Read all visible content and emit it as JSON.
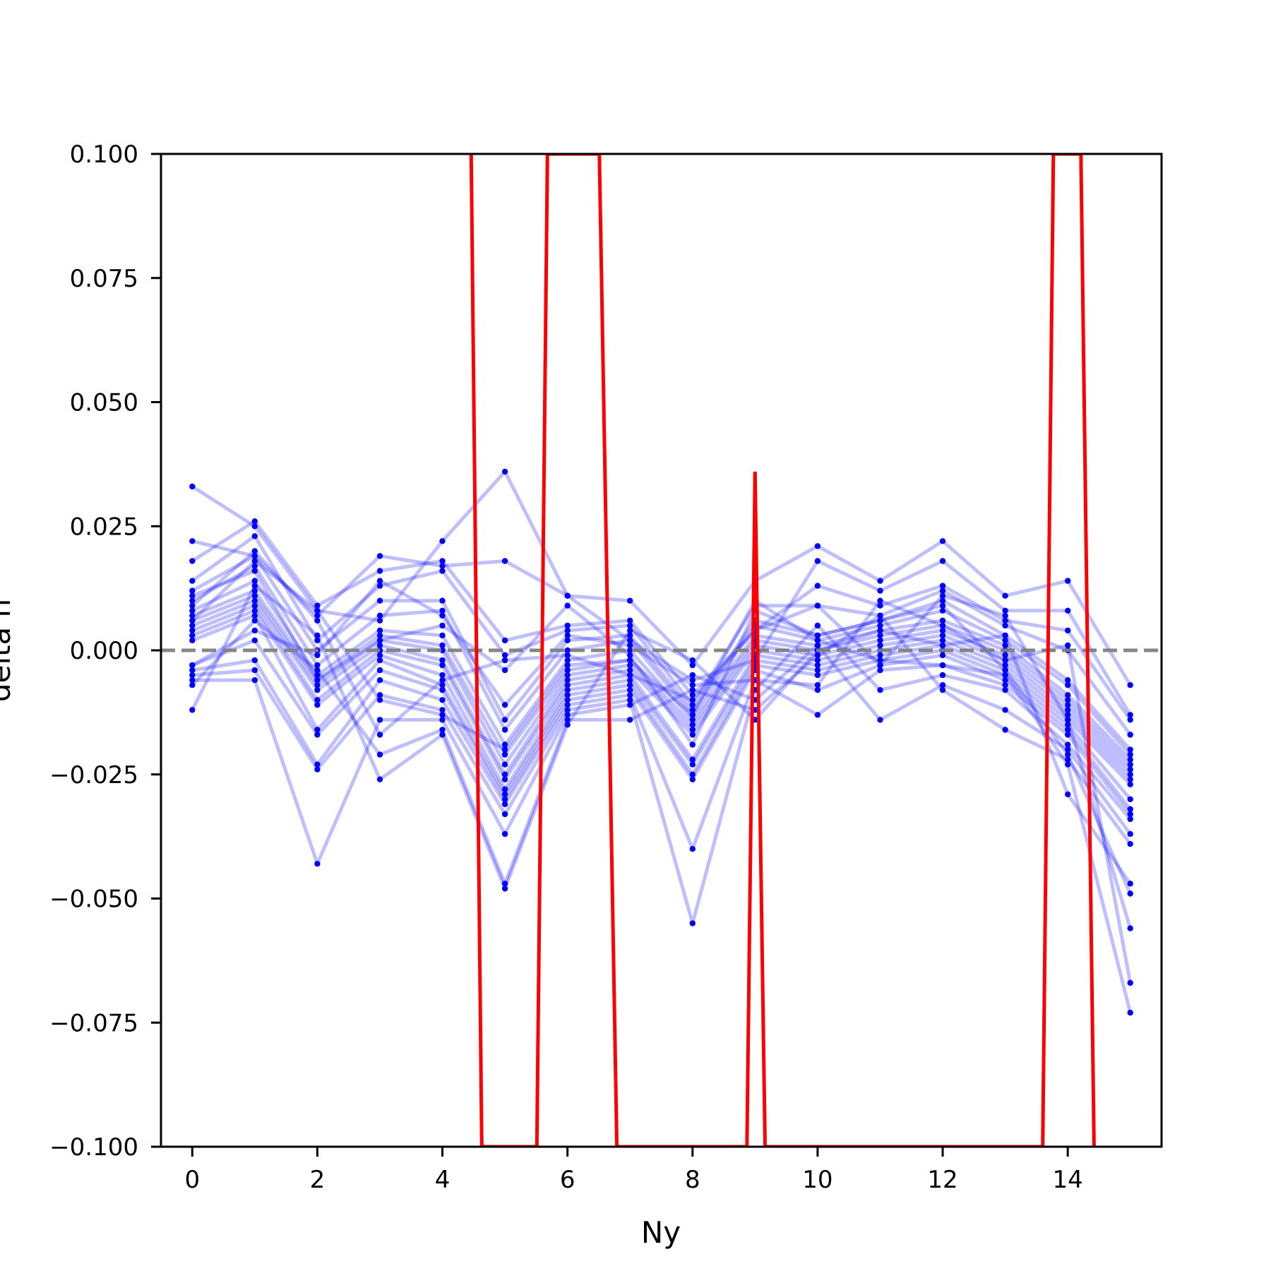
{
  "chart_data": {
    "type": "line",
    "title": "",
    "xlabel": "Ny",
    "ylabel": "delta n",
    "xlim": [
      -0.5,
      15.5
    ],
    "ylim": [
      -0.1,
      0.1
    ],
    "xticks": [
      0,
      2,
      4,
      6,
      8,
      10,
      12,
      14
    ],
    "xtick_labels": [
      "0",
      "2",
      "4",
      "6",
      "8",
      "10",
      "12",
      "14"
    ],
    "yticks": [
      0.1,
      0.075,
      0.05,
      0.025,
      0.0,
      -0.025,
      -0.05,
      -0.075,
      -0.1
    ],
    "ytick_labels": [
      "0.100",
      "0.075",
      "0.050",
      "0.025",
      "0.000",
      "−0.025",
      "−0.050",
      "−0.075",
      "−0.100"
    ],
    "grid": false,
    "reference_line": {
      "y": 0.0,
      "style": "dashed",
      "color": "#808080"
    },
    "colors": {
      "trials": "#0000ff",
      "highlight": "#ff0000"
    },
    "x": [
      0,
      1,
      2,
      3,
      4,
      5,
      6,
      7,
      8,
      9,
      10,
      11,
      12,
      13,
      14,
      15
    ],
    "series": [
      {
        "values": [
          0.033,
          0.025,
          0.008,
          0.006,
          0.022,
          0.036,
          0.011,
          0.01,
          -0.003,
          0.014,
          0.021,
          0.014,
          0.022,
          0.011,
          0.014,
          -0.007
        ]
      },
      {
        "values": [
          0.022,
          0.019,
          0.007,
          0.019,
          0.017,
          0.018,
          0.011,
          0.002,
          -0.006,
          -0.002,
          0.018,
          0.012,
          0.018,
          0.008,
          0.008,
          -0.013
        ]
      },
      {
        "values": [
          0.018,
          0.026,
          0.009,
          0.016,
          0.018,
          0.002,
          0.005,
          0.006,
          -0.009,
          0.004,
          0.013,
          0.009,
          0.013,
          0.006,
          0.004,
          -0.014
        ]
      },
      {
        "values": [
          0.014,
          0.023,
          0.002,
          0.013,
          0.016,
          -0.001,
          0.004,
          0.005,
          -0.011,
          0.009,
          0.009,
          0.007,
          0.012,
          0.005,
          0.0,
          -0.017
        ]
      },
      {
        "values": [
          0.012,
          0.019,
          0.0,
          0.01,
          0.01,
          -0.014,
          0.002,
          0.003,
          -0.012,
          0.006,
          0.003,
          0.006,
          0.01,
          0.003,
          -0.006,
          -0.02
        ]
      },
      {
        "values": [
          0.01,
          0.017,
          -0.003,
          0.007,
          0.008,
          -0.016,
          0.0,
          0.002,
          -0.013,
          0.005,
          0.002,
          0.005,
          0.008,
          0.002,
          -0.007,
          -0.021
        ]
      },
      {
        "values": [
          0.008,
          0.014,
          -0.005,
          0.004,
          0.003,
          -0.019,
          -0.002,
          0.0,
          -0.014,
          0.003,
          0.001,
          0.004,
          0.006,
          0.001,
          -0.009,
          -0.022
        ]
      },
      {
        "values": [
          0.007,
          0.012,
          -0.006,
          0.003,
          0.001,
          -0.021,
          -0.004,
          -0.002,
          -0.015,
          0.002,
          0.0,
          0.003,
          0.005,
          0.0,
          -0.01,
          -0.023
        ]
      },
      {
        "values": [
          0.006,
          0.011,
          -0.007,
          0.002,
          0.0,
          -0.023,
          -0.005,
          -0.003,
          -0.016,
          0.001,
          -0.001,
          0.002,
          0.004,
          -0.001,
          -0.011,
          -0.024
        ]
      },
      {
        "values": [
          0.005,
          0.01,
          -0.008,
          0.001,
          -0.002,
          -0.025,
          -0.006,
          -0.004,
          -0.017,
          0.0,
          -0.002,
          0.001,
          0.003,
          -0.002,
          -0.012,
          -0.025
        ]
      },
      {
        "values": [
          0.004,
          0.009,
          -0.01,
          0.0,
          -0.003,
          -0.026,
          -0.007,
          -0.005,
          -0.022,
          -0.001,
          -0.003,
          0.0,
          0.002,
          -0.003,
          -0.013,
          -0.026
        ]
      },
      {
        "values": [
          0.003,
          0.008,
          -0.011,
          -0.001,
          -0.005,
          -0.028,
          -0.008,
          -0.006,
          -0.023,
          -0.002,
          -0.004,
          -0.001,
          0.001,
          -0.004,
          -0.014,
          -0.027
        ]
      },
      {
        "values": [
          0.002,
          0.007,
          -0.016,
          -0.002,
          -0.007,
          -0.029,
          -0.009,
          -0.007,
          -0.025,
          -0.003,
          -0.005,
          -0.002,
          0.0,
          -0.005,
          -0.015,
          -0.03
        ]
      },
      {
        "values": [
          -0.003,
          0.002,
          -0.017,
          -0.004,
          -0.008,
          -0.03,
          -0.01,
          -0.008,
          -0.026,
          -0.004,
          -0.008,
          -0.003,
          -0.001,
          -0.006,
          -0.016,
          -0.032
        ]
      },
      {
        "values": [
          -0.004,
          -0.002,
          -0.023,
          -0.006,
          -0.01,
          -0.031,
          -0.011,
          -0.009,
          -0.04,
          -0.006,
          -0.013,
          -0.004,
          -0.003,
          -0.007,
          -0.017,
          -0.033
        ]
      },
      {
        "values": [
          -0.005,
          -0.004,
          -0.024,
          -0.009,
          -0.012,
          -0.033,
          -0.012,
          -0.01,
          -0.055,
          -0.008,
          0.005,
          -0.008,
          -0.005,
          -0.008,
          -0.019,
          -0.034
        ]
      },
      {
        "values": [
          -0.006,
          -0.006,
          -0.043,
          -0.014,
          -0.014,
          -0.037,
          -0.013,
          -0.011,
          -0.005,
          -0.01,
          0.001,
          -0.014,
          -0.007,
          -0.012,
          -0.02,
          -0.037
        ]
      },
      {
        "values": [
          -0.007,
          0.006,
          -0.004,
          -0.021,
          -0.016,
          -0.047,
          -0.014,
          -0.014,
          -0.008,
          -0.012,
          -0.001,
          0.007,
          -0.008,
          -0.016,
          -0.022,
          -0.039
        ]
      },
      {
        "values": [
          -0.012,
          0.013,
          0.003,
          -0.026,
          -0.017,
          -0.048,
          -0.015,
          0.004,
          -0.002,
          -0.014,
          0.0,
          0.004,
          0.001,
          0.003,
          -0.029,
          -0.047
        ]
      },
      {
        "values": [
          0.011,
          0.016,
          -0.006,
          0.002,
          0.005,
          -0.004,
          0.009,
          -0.001,
          -0.019,
          0.008,
          0.003,
          0.006,
          0.009,
          -0.004,
          -0.021,
          -0.049
        ]
      },
      {
        "values": [
          0.009,
          0.02,
          0.006,
          -0.017,
          -0.006,
          -0.002,
          -0.001,
          -0.005,
          -0.01,
          0.004,
          0.009,
          -0.003,
          0.011,
          0.007,
          -0.014,
          -0.056
        ]
      },
      {
        "values": [
          -0.003,
          0.004,
          -0.001,
          0.014,
          0.007,
          -0.011,
          0.003,
          0.001,
          -0.007,
          -0.006,
          -0.007,
          0.01,
          0.005,
          -0.002,
          0.001,
          -0.067
        ]
      },
      {
        "values": [
          0.006,
          0.018,
          0.008,
          -0.01,
          -0.013,
          -0.02,
          -0.003,
          -0.002,
          -0.013,
          0.01,
          0.002,
          -0.002,
          -0.003,
          -0.005,
          -0.023,
          -0.073
        ]
      }
    ],
    "highlight_series": {
      "description_free": true,
      "points": [
        {
          "x": 4.46,
          "y": 0.1
        },
        {
          "x": 4.63,
          "y": -0.1
        },
        {
          "x": 5.51,
          "y": -0.1
        },
        {
          "x": 5.68,
          "y": 0.1
        },
        {
          "x": 6.51,
          "y": 0.1
        },
        {
          "x": 6.79,
          "y": -0.1
        },
        {
          "x": 8.87,
          "y": -0.1
        },
        {
          "x": 9.0,
          "y": 0.036
        },
        {
          "x": 9.16,
          "y": -0.1
        },
        {
          "x": 13.6,
          "y": -0.1
        },
        {
          "x": 13.77,
          "y": 0.1
        },
        {
          "x": 14.21,
          "y": 0.1
        },
        {
          "x": 14.42,
          "y": -0.1
        }
      ]
    }
  }
}
